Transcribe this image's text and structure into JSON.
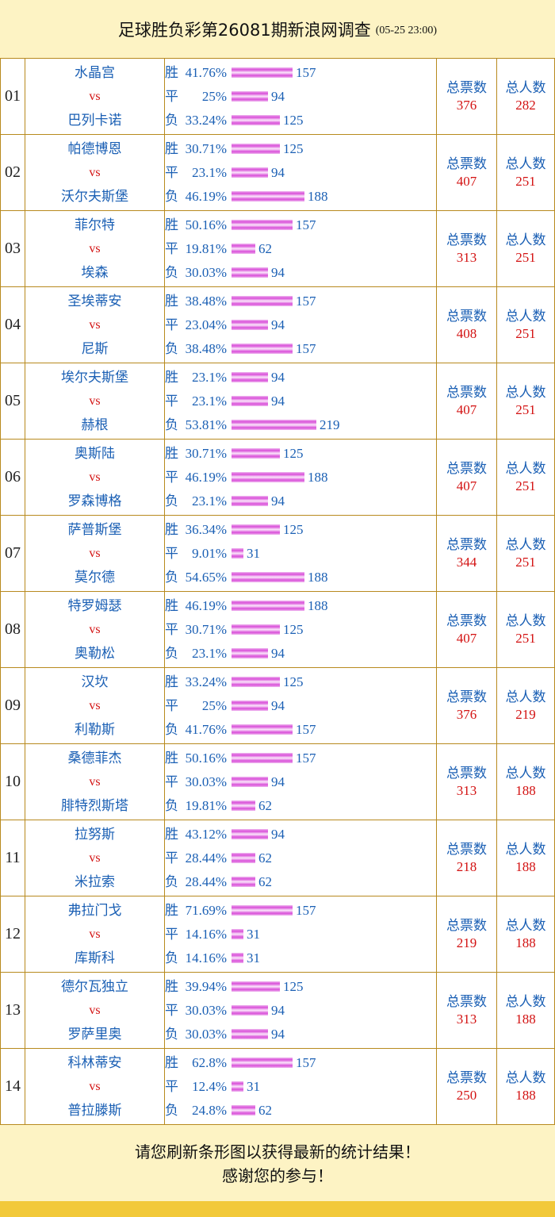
{
  "header": {
    "title": "足球胜负彩第26081期新浪网调查",
    "datetime": "(05-25 23:00)"
  },
  "labels": {
    "win": "胜",
    "draw": "平",
    "lose": "负",
    "total_votes": "总票数",
    "total_people": "总人数"
  },
  "matches": [
    {
      "no": "01",
      "home": "水晶宫",
      "vs": "vs",
      "away": "巴列卡诺",
      "win_pct": "41.76%",
      "win": 157,
      "draw_pct": "25%",
      "draw": 94,
      "lose_pct": "33.24%",
      "lose": 125,
      "total_votes": "376",
      "total_people": "282"
    },
    {
      "no": "02",
      "home": "帕德博恩",
      "vs": "vs",
      "away": "沃尔夫斯堡",
      "win_pct": "30.71%",
      "win": 125,
      "draw_pct": "23.1%",
      "draw": 94,
      "lose_pct": "46.19%",
      "lose": 188,
      "total_votes": "407",
      "total_people": "251"
    },
    {
      "no": "03",
      "home": "菲尔特",
      "vs": "vs",
      "away": "埃森",
      "win_pct": "50.16%",
      "win": 157,
      "draw_pct": "19.81%",
      "draw": 62,
      "lose_pct": "30.03%",
      "lose": 94,
      "total_votes": "313",
      "total_people": "251"
    },
    {
      "no": "04",
      "home": "圣埃蒂安",
      "vs": "vs",
      "away": "尼斯",
      "win_pct": "38.48%",
      "win": 157,
      "draw_pct": "23.04%",
      "draw": 94,
      "lose_pct": "38.48%",
      "lose": 157,
      "total_votes": "408",
      "total_people": "251"
    },
    {
      "no": "05",
      "home": "埃尔夫斯堡",
      "vs": "vs",
      "away": "赫根",
      "win_pct": "23.1%",
      "win": 94,
      "draw_pct": "23.1%",
      "draw": 94,
      "lose_pct": "53.81%",
      "lose": 219,
      "total_votes": "407",
      "total_people": "251"
    },
    {
      "no": "06",
      "home": "奥斯陆",
      "vs": "vs",
      "away": "罗森博格",
      "win_pct": "30.71%",
      "win": 125,
      "draw_pct": "46.19%",
      "draw": 188,
      "lose_pct": "23.1%",
      "lose": 94,
      "total_votes": "407",
      "total_people": "251"
    },
    {
      "no": "07",
      "home": "萨普斯堡",
      "vs": "vs",
      "away": "莫尔德",
      "win_pct": "36.34%",
      "win": 125,
      "draw_pct": "9.01%",
      "draw": 31,
      "lose_pct": "54.65%",
      "lose": 188,
      "total_votes": "344",
      "total_people": "251"
    },
    {
      "no": "08",
      "home": "特罗姆瑟",
      "vs": "vs",
      "away": "奥勒松",
      "win_pct": "46.19%",
      "win": 188,
      "draw_pct": "30.71%",
      "draw": 125,
      "lose_pct": "23.1%",
      "lose": 94,
      "total_votes": "407",
      "total_people": "251"
    },
    {
      "no": "09",
      "home": "汉坎",
      "vs": "vs",
      "away": "利勒斯",
      "win_pct": "33.24%",
      "win": 125,
      "draw_pct": "25%",
      "draw": 94,
      "lose_pct": "41.76%",
      "lose": 157,
      "total_votes": "376",
      "total_people": "219"
    },
    {
      "no": "10",
      "home": "桑德菲杰",
      "vs": "vs",
      "away": "腓特烈斯塔",
      "win_pct": "50.16%",
      "win": 157,
      "draw_pct": "30.03%",
      "draw": 94,
      "lose_pct": "19.81%",
      "lose": 62,
      "total_votes": "313",
      "total_people": "188"
    },
    {
      "no": "11",
      "home": "拉努斯",
      "vs": "vs",
      "away": "米拉索",
      "win_pct": "43.12%",
      "win": 94,
      "draw_pct": "28.44%",
      "draw": 62,
      "lose_pct": "28.44%",
      "lose": 62,
      "total_votes": "218",
      "total_people": "188"
    },
    {
      "no": "12",
      "home": "弗拉门戈",
      "vs": "vs",
      "away": "库斯科",
      "win_pct": "71.69%",
      "win": 157,
      "draw_pct": "14.16%",
      "draw": 31,
      "lose_pct": "14.16%",
      "lose": 31,
      "total_votes": "219",
      "total_people": "188"
    },
    {
      "no": "13",
      "home": "德尔瓦独立",
      "vs": "vs",
      "away": "罗萨里奥",
      "win_pct": "39.94%",
      "win": 125,
      "draw_pct": "30.03%",
      "draw": 94,
      "lose_pct": "30.03%",
      "lose": 94,
      "total_votes": "313",
      "total_people": "188"
    },
    {
      "no": "14",
      "home": "科林蒂安",
      "vs": "vs",
      "away": "普拉滕斯",
      "win_pct": "62.8%",
      "win": 157,
      "draw_pct": "12.4%",
      "draw": 31,
      "lose_pct": "24.8%",
      "lose": 62,
      "total_votes": "250",
      "total_people": "188"
    }
  ],
  "footer": {
    "line1": "请您刷新条形图以获得最新的统计结果！",
    "line2": "感谢您的参与！"
  },
  "colors": {
    "background": "#fdf3c4",
    "border": "#b88a1e",
    "team_text": "#1a5fb4",
    "accent_red": "#d31212",
    "bar": "#d94fd9"
  }
}
